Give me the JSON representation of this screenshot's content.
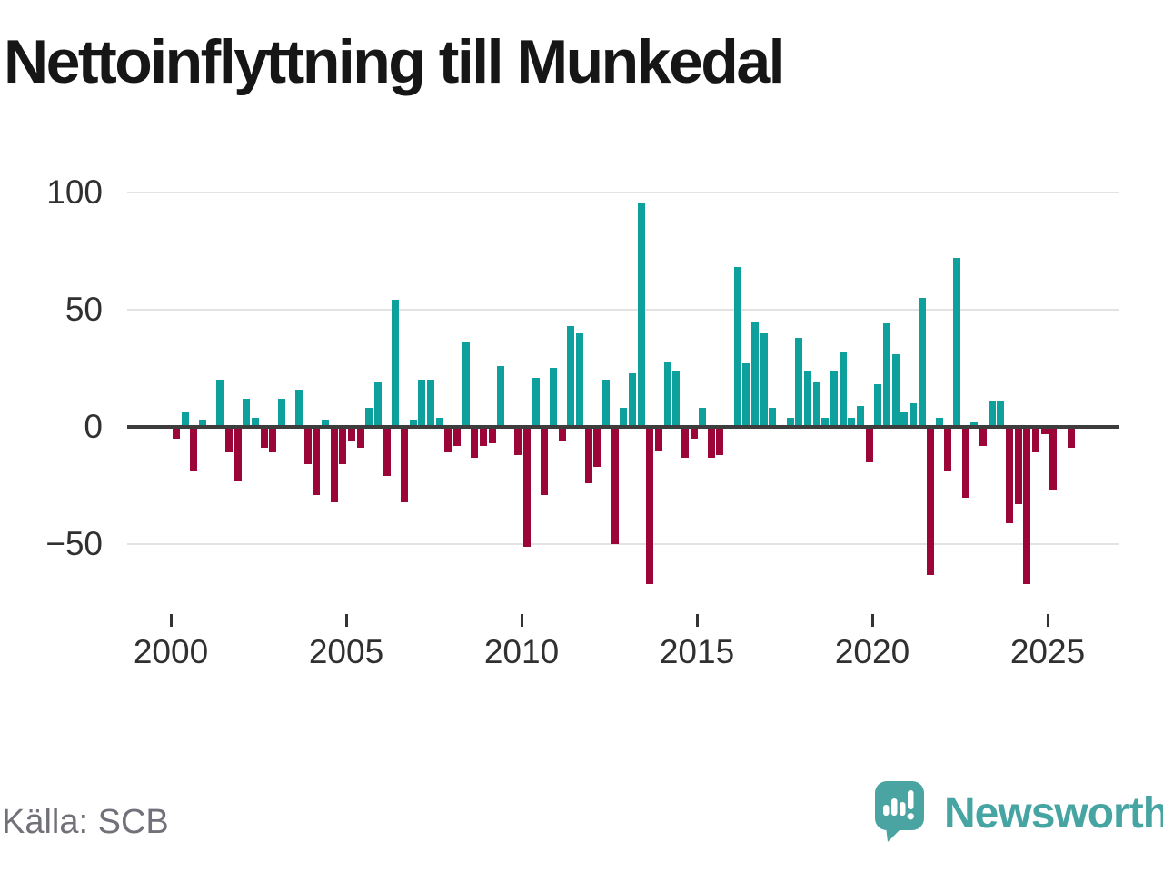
{
  "header": {
    "title": "Nettoinflyttning till Munkedal"
  },
  "footer": {
    "source_label": "Källa: SCB",
    "brand_name": "Newsworthy"
  },
  "colors": {
    "positive_bar": "#0da09d",
    "negative_bar": "#9b0537",
    "axis_line": "#3d3d3d",
    "gridline": "#e3e3e3",
    "brand_teal": "#4aa5a2",
    "title_text": "#161616",
    "tick_text": "#303030",
    "source_text": "#71717a"
  },
  "chart_data": {
    "type": "bar",
    "title": "Nettoinflyttning till Munkedal",
    "xlabel": "",
    "ylabel": "",
    "frequency": "quarterly",
    "period_start": "2000 Q1",
    "period_end": "2025 Q3",
    "ylim": [
      -75,
      110
    ],
    "grid": "horizontal",
    "legend": "none",
    "yticks": [
      {
        "label": "100",
        "value": 100
      },
      {
        "label": "50",
        "value": 50
      },
      {
        "label": "0",
        "value": 0
      },
      {
        "label": "−50",
        "value": -50
      }
    ],
    "xticks": [
      {
        "label": "2000",
        "quarter_index": 0
      },
      {
        "label": "2005",
        "quarter_index": 20
      },
      {
        "label": "2010",
        "quarter_index": 40
      },
      {
        "label": "2015",
        "quarter_index": 60
      },
      {
        "label": "2020",
        "quarter_index": 80
      },
      {
        "label": "2025",
        "quarter_index": 100
      }
    ],
    "series": [
      {
        "year": 2000,
        "quarterly_values": [
          -5,
          6,
          -19,
          3
        ]
      },
      {
        "year": 2001,
        "quarterly_values": [
          0,
          20,
          -11,
          -23
        ]
      },
      {
        "year": 2002,
        "quarterly_values": [
          12,
          4,
          -9,
          -11
        ]
      },
      {
        "year": 2003,
        "quarterly_values": [
          12,
          0,
          16,
          -16
        ]
      },
      {
        "year": 2004,
        "quarterly_values": [
          -29,
          3,
          -32,
          -16
        ]
      },
      {
        "year": 2005,
        "quarterly_values": [
          -6,
          -9,
          8,
          19
        ]
      },
      {
        "year": 2006,
        "quarterly_values": [
          -21,
          54,
          -32,
          3
        ]
      },
      {
        "year": 2007,
        "quarterly_values": [
          20,
          20,
          4,
          -11
        ]
      },
      {
        "year": 2008,
        "quarterly_values": [
          -8,
          36,
          -13,
          -8
        ]
      },
      {
        "year": 2009,
        "quarterly_values": [
          -7,
          26,
          0,
          -12
        ]
      },
      {
        "year": 2010,
        "quarterly_values": [
          -51,
          21,
          -29,
          25
        ]
      },
      {
        "year": 2011,
        "quarterly_values": [
          -6,
          43,
          40,
          -24
        ]
      },
      {
        "year": 2012,
        "quarterly_values": [
          -17,
          20,
          -50,
          8
        ]
      },
      {
        "year": 2013,
        "quarterly_values": [
          23,
          95,
          -67,
          -10
        ]
      },
      {
        "year": 2014,
        "quarterly_values": [
          28,
          24,
          -13,
          -5
        ]
      },
      {
        "year": 2015,
        "quarterly_values": [
          8,
          -13,
          -12,
          0
        ]
      },
      {
        "year": 2016,
        "quarterly_values": [
          68,
          27,
          45,
          40
        ]
      },
      {
        "year": 2017,
        "quarterly_values": [
          8,
          0,
          4,
          38
        ]
      },
      {
        "year": 2018,
        "quarterly_values": [
          24,
          19,
          4,
          24
        ]
      },
      {
        "year": 2019,
        "quarterly_values": [
          32,
          4,
          9,
          -15
        ]
      },
      {
        "year": 2020,
        "quarterly_values": [
          18,
          44,
          31,
          6
        ]
      },
      {
        "year": 2021,
        "quarterly_values": [
          10,
          55,
          -63,
          4
        ]
      },
      {
        "year": 2022,
        "quarterly_values": [
          -19,
          72,
          -30,
          2
        ]
      },
      {
        "year": 2023,
        "quarterly_values": [
          -8,
          11,
          11,
          -41
        ]
      },
      {
        "year": 2024,
        "quarterly_values": [
          -33,
          -67,
          -11,
          -3
        ]
      },
      {
        "year": 2025,
        "quarterly_values": [
          -27,
          0,
          -9
        ]
      }
    ]
  }
}
